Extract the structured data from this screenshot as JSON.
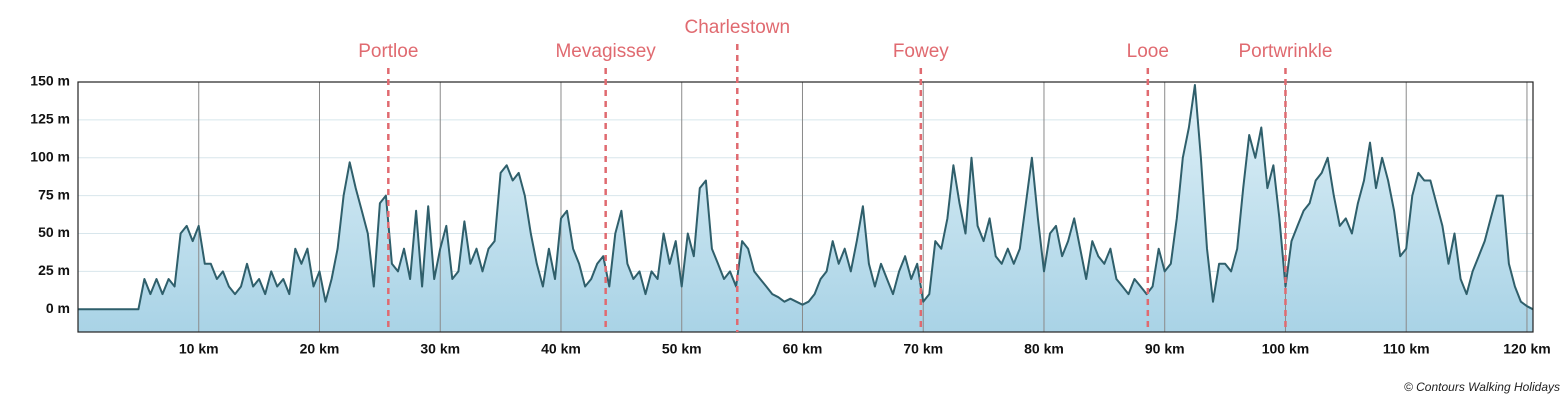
{
  "chart_data": {
    "type": "area",
    "x": [
      0,
      5,
      5.5,
      6,
      6.5,
      7,
      7.5,
      8,
      8.5,
      9,
      9.5,
      10,
      10.5,
      11,
      11.5,
      12,
      12.5,
      13,
      13.5,
      14,
      14.5,
      15,
      15.5,
      16,
      16.5,
      17,
      17.5,
      18,
      18.5,
      19,
      19.5,
      20,
      20.5,
      21,
      21.5,
      22,
      22.5,
      23,
      23.5,
      24,
      24.5,
      25,
      25.5,
      26,
      26.5,
      27,
      27.5,
      28,
      28.5,
      29,
      29.5,
      30,
      30.5,
      31,
      31.5,
      32,
      32.5,
      33,
      33.5,
      34,
      34.5,
      35,
      35.5,
      36,
      36.5,
      37,
      37.5,
      38,
      38.5,
      39,
      39.5,
      40,
      40.5,
      41,
      41.5,
      42,
      42.5,
      43,
      43.5,
      44,
      44.5,
      45,
      45.5,
      46,
      46.5,
      47,
      47.5,
      48,
      48.5,
      49,
      49.5,
      50,
      50.5,
      51,
      51.5,
      52,
      52.5,
      53,
      53.5,
      54,
      54.5,
      55,
      55.5,
      56,
      56.5,
      57,
      57.5,
      58,
      58.5,
      59,
      59.5,
      60,
      60.5,
      61,
      61.5,
      62,
      62.5,
      63,
      63.5,
      64,
      64.5,
      65,
      65.5,
      66,
      66.5,
      67,
      67.5,
      68,
      68.5,
      69,
      69.5,
      70,
      70.5,
      71,
      71.5,
      72,
      72.5,
      73,
      73.5,
      74,
      74.5,
      75,
      75.5,
      76,
      76.5,
      77,
      77.5,
      78,
      78.5,
      79,
      79.5,
      80,
      80.5,
      81,
      81.5,
      82,
      82.5,
      83,
      83.5,
      84,
      84.5,
      85,
      85.5,
      86,
      86.5,
      87,
      87.5,
      88,
      88.5,
      89,
      89.5,
      90,
      90.5,
      91,
      91.5,
      92,
      92.5,
      93,
      93.5,
      94,
      94.5,
      95,
      95.5,
      96,
      96.5,
      97,
      97.5,
      98,
      98.5,
      99,
      99.5,
      100,
      100.5,
      101,
      101.5,
      102,
      102.5,
      103,
      103.5,
      104,
      104.5,
      105,
      105.5,
      106,
      106.5,
      107,
      107.5,
      108,
      108.5,
      109,
      109.5,
      110,
      110.5,
      111,
      111.5,
      112,
      112.5,
      113,
      113.5,
      114,
      114.5,
      115,
      115.5,
      116,
      116.5,
      117,
      117.5,
      118,
      118.5,
      119,
      119.5,
      120,
      120.5
    ],
    "values": [
      0,
      0,
      20,
      10,
      20,
      10,
      20,
      15,
      50,
      55,
      45,
      55,
      30,
      30,
      20,
      25,
      15,
      10,
      15,
      30,
      15,
      20,
      10,
      25,
      15,
      20,
      10,
      40,
      30,
      40,
      15,
      25,
      5,
      20,
      40,
      75,
      97,
      80,
      65,
      50,
      15,
      70,
      75,
      30,
      25,
      40,
      20,
      65,
      15,
      68,
      20,
      40,
      55,
      20,
      25,
      58,
      30,
      40,
      25,
      40,
      45,
      90,
      95,
      85,
      90,
      75,
      50,
      30,
      15,
      40,
      20,
      60,
      65,
      40,
      30,
      15,
      20,
      30,
      35,
      15,
      50,
      65,
      30,
      20,
      25,
      10,
      25,
      20,
      50,
      30,
      45,
      15,
      50,
      35,
      80,
      85,
      40,
      30,
      20,
      25,
      15,
      45,
      40,
      25,
      20,
      15,
      10,
      8,
      5,
      7,
      5,
      3,
      5,
      10,
      20,
      25,
      45,
      30,
      40,
      25,
      45,
      68,
      30,
      15,
      30,
      20,
      10,
      25,
      35,
      20,
      30,
      5,
      10,
      45,
      40,
      60,
      95,
      70,
      50,
      100,
      55,
      45,
      60,
      35,
      30,
      40,
      30,
      40,
      70,
      100,
      60,
      25,
      50,
      55,
      35,
      45,
      60,
      40,
      20,
      45,
      35,
      30,
      40,
      20,
      15,
      10,
      20,
      15,
      10,
      15,
      40,
      25,
      30,
      60,
      100,
      120,
      148,
      100,
      40,
      5,
      30,
      30,
      25,
      40,
      80,
      115,
      100,
      120,
      80,
      95,
      60,
      15,
      45,
      55,
      65,
      70,
      85,
      90,
      100,
      75,
      55,
      60,
      50,
      70,
      85,
      110,
      80,
      100,
      85,
      65,
      35,
      40,
      75,
      90,
      85,
      85,
      70,
      55,
      30,
      50,
      20,
      10,
      25,
      35,
      45,
      60,
      75,
      75,
      30,
      15,
      5,
      2,
      0
    ],
    "color": "#2f5f6b",
    "fill": "#bfe0ee",
    "xlim": [
      0,
      120.5
    ],
    "ylim": [
      -15,
      150
    ],
    "xticks": [
      {
        "value": 10,
        "label": "10 km"
      },
      {
        "value": 20,
        "label": "20 km"
      },
      {
        "value": 30,
        "label": "30 km"
      },
      {
        "value": 40,
        "label": "40 km"
      },
      {
        "value": 50,
        "label": "50 km"
      },
      {
        "value": 60,
        "label": "60 km"
      },
      {
        "value": 70,
        "label": "70 km"
      },
      {
        "value": 80,
        "label": "80 km"
      },
      {
        "value": 90,
        "label": "90 km"
      },
      {
        "value": 100,
        "label": "100 km"
      },
      {
        "value": 110,
        "label": "110 km"
      },
      {
        "value": 120,
        "label": "120 km"
      }
    ],
    "yticks": [
      {
        "value": 0,
        "label": "0 m"
      },
      {
        "value": 25,
        "label": "25 m"
      },
      {
        "value": 50,
        "label": "50 m"
      },
      {
        "value": 75,
        "label": "75 m"
      },
      {
        "value": 100,
        "label": "100 m"
      },
      {
        "value": 125,
        "label": "125 m"
      },
      {
        "value": 150,
        "label": "150 m"
      }
    ],
    "grid": true,
    "towns": [
      {
        "name": "Portloe",
        "km": 25.7
      },
      {
        "name": "Mevagissey",
        "km": 43.7
      },
      {
        "name": "Charlestown",
        "km": 54.6
      },
      {
        "name": "Fowey",
        "km": 69.8
      },
      {
        "name": "Looe",
        "km": 88.6
      },
      {
        "name": "Portwrinkle",
        "km": 100
      }
    ],
    "town_color": "#e06a70",
    "credit": "© Contours Walking Holidays"
  }
}
